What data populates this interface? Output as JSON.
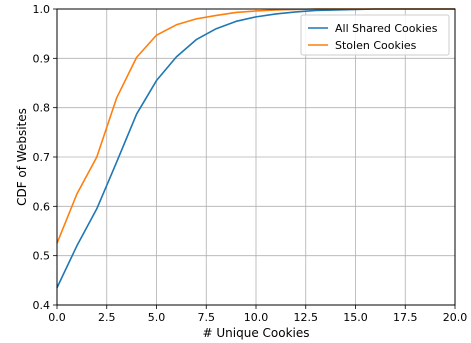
{
  "chart_data": {
    "type": "line",
    "title": "",
    "xlabel": "# Unique Cookies",
    "ylabel": "CDF of Websites",
    "xlim": [
      0,
      20
    ],
    "ylim": [
      0.4,
      1.0
    ],
    "xticks": [
      0,
      2.5,
      5,
      7.5,
      10,
      12.5,
      15,
      17.5,
      20
    ],
    "xtick_labels": [
      "0.0",
      "2.5",
      "5.0",
      "7.5",
      "10.0",
      "12.5",
      "15.0",
      "17.5",
      "20.0"
    ],
    "yticks": [
      0.4,
      0.5,
      0.6,
      0.7,
      0.8,
      0.9,
      1.0
    ],
    "ytick_labels": [
      "0.4",
      "0.5",
      "0.6",
      "0.7",
      "0.8",
      "0.9",
      "1.0"
    ],
    "grid": true,
    "legend_position": "top-right",
    "series": [
      {
        "name": "All Shared Cookies",
        "color": "#1f77b4",
        "x": [
          0,
          1,
          2,
          3,
          4,
          5,
          6,
          7,
          8,
          9,
          10,
          11,
          12,
          13,
          14,
          15,
          16,
          17,
          18,
          19,
          20
        ],
        "y": [
          0.435,
          0.52,
          0.595,
          0.69,
          0.787,
          0.855,
          0.903,
          0.938,
          0.96,
          0.975,
          0.984,
          0.99,
          0.994,
          0.997,
          0.998,
          0.999,
          1.0,
          1.0,
          1.0,
          1.0,
          1.0
        ]
      },
      {
        "name": "Stolen Cookies",
        "color": "#ff7f0e",
        "x": [
          0,
          1,
          2,
          3,
          4,
          5,
          6,
          7,
          8,
          9,
          10,
          11,
          12,
          13,
          14,
          15,
          16,
          17,
          18,
          19,
          20
        ],
        "y": [
          0.525,
          0.625,
          0.7,
          0.82,
          0.902,
          0.947,
          0.968,
          0.98,
          0.987,
          0.993,
          0.996,
          0.998,
          0.999,
          1.0,
          1.0,
          1.0,
          1.0,
          1.0,
          1.0,
          1.0,
          1.0
        ]
      }
    ]
  }
}
